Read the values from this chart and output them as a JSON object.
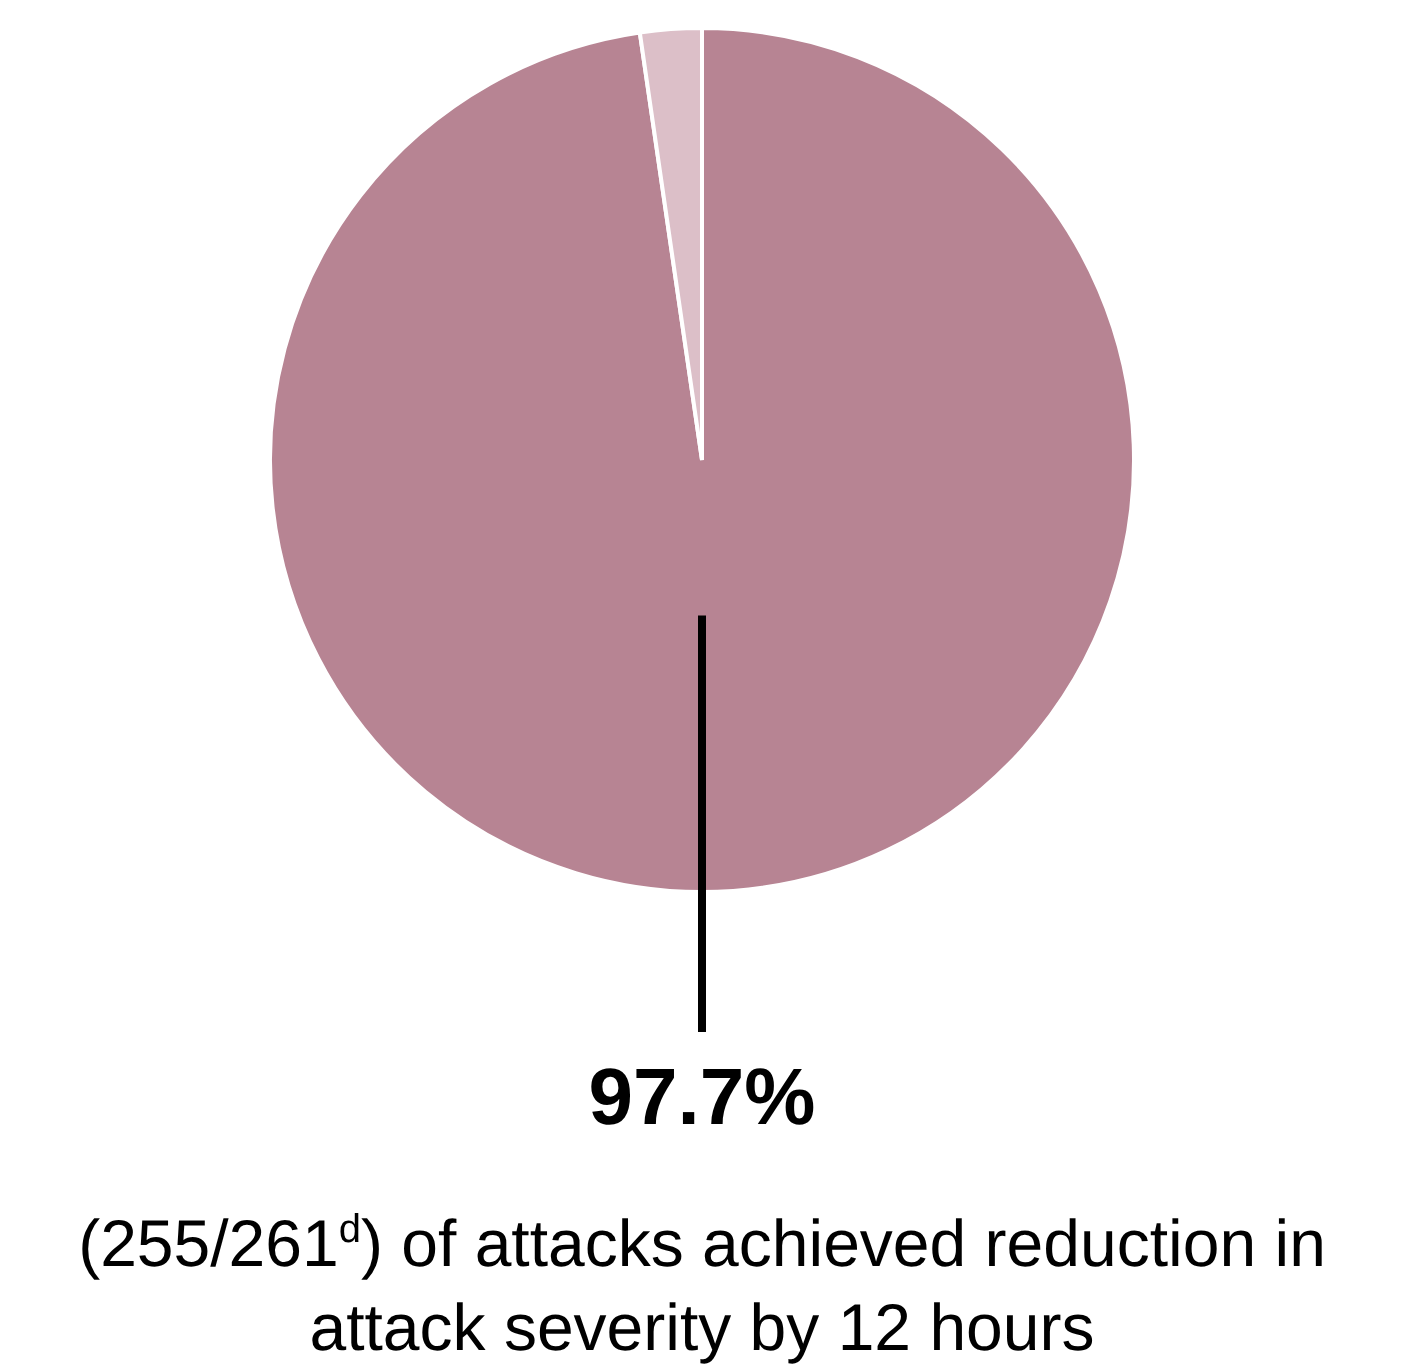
{
  "chart_data": {
    "type": "pie",
    "categories": [
      null,
      null
    ],
    "values": [
      97.7,
      2.3
    ],
    "colors": [
      "#b78493",
      "#dcbfc8"
    ],
    "value_labels": [
      "97.7%",
      null
    ],
    "annotations": [
      "(255/261$^{d}$) of attacks achieved reduction in attack severity by 12 hours"
    ],
    "legend": false
  }
}
